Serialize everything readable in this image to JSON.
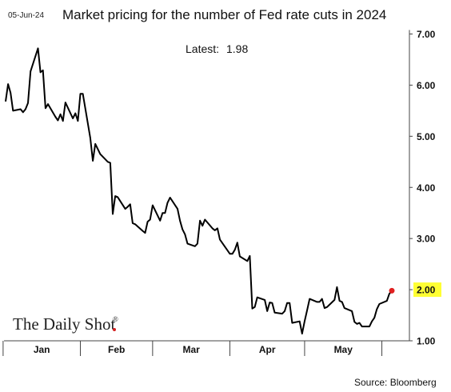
{
  "header": {
    "date_stamp": "05-Jun-24",
    "title": "Market pricing for the number of Fed rate cuts in 2024"
  },
  "annotation": {
    "label": "Latest:",
    "value": "1.98"
  },
  "branding": {
    "logo": "The Daily Shot",
    "logo_mark": "®"
  },
  "footer": {
    "source": "Source: Bloomberg"
  },
  "colors": {
    "line": "#000000",
    "marker": "#e02020",
    "highlight_box": "#ffff33"
  },
  "chart_data": {
    "type": "line",
    "title": "Market pricing for the number of Fed rate cuts in 2024",
    "xlabel": "",
    "ylabel": "",
    "ylim": [
      1.0,
      7.0
    ],
    "yticks": [
      "7.00",
      "6.00",
      "5.00",
      "4.00",
      "3.00",
      "2.00",
      "1.00"
    ],
    "highlight_tick": "2.00",
    "y_axis_side": "right",
    "grid": false,
    "legend": "none",
    "x_periods": [
      "Jan",
      "Feb",
      "Mar",
      "Apr",
      "May"
    ],
    "x_start": "2024-01-02",
    "x_end": "2024-06-05",
    "series": [
      {
        "values": [
          [
            "2024-01-02",
            5.68
          ],
          [
            "2024-01-03",
            6.02
          ],
          [
            "2024-01-04",
            5.85
          ],
          [
            "2024-01-05",
            5.5
          ],
          [
            "2024-01-08",
            5.53
          ],
          [
            "2024-01-09",
            5.47
          ],
          [
            "2024-01-10",
            5.53
          ],
          [
            "2024-01-11",
            5.65
          ],
          [
            "2024-01-12",
            6.27
          ],
          [
            "2024-01-15",
            6.72
          ],
          [
            "2024-01-16",
            6.25
          ],
          [
            "2024-01-17",
            6.29
          ],
          [
            "2024-01-18",
            5.55
          ],
          [
            "2024-01-19",
            5.63
          ],
          [
            "2024-01-22",
            5.38
          ],
          [
            "2024-01-23",
            5.31
          ],
          [
            "2024-01-24",
            5.43
          ],
          [
            "2024-01-25",
            5.3
          ],
          [
            "2024-01-26",
            5.66
          ],
          [
            "2024-01-29",
            5.35
          ],
          [
            "2024-01-30",
            5.45
          ],
          [
            "2024-01-31",
            5.3
          ],
          [
            "2024-02-01",
            5.83
          ],
          [
            "2024-02-02",
            5.83
          ],
          [
            "2024-02-05",
            4.97
          ],
          [
            "2024-02-06",
            4.52
          ],
          [
            "2024-02-07",
            4.85
          ],
          [
            "2024-02-08",
            4.75
          ],
          [
            "2024-02-09",
            4.65
          ],
          [
            "2024-02-12",
            4.5
          ],
          [
            "2024-02-13",
            4.48
          ],
          [
            "2024-02-14",
            3.48
          ],
          [
            "2024-02-15",
            3.83
          ],
          [
            "2024-02-16",
            3.81
          ],
          [
            "2024-02-19",
            3.58
          ],
          [
            "2024-02-20",
            3.62
          ],
          [
            "2024-02-21",
            3.67
          ],
          [
            "2024-02-22",
            3.3
          ],
          [
            "2024-02-23",
            3.28
          ],
          [
            "2024-02-26",
            3.15
          ],
          [
            "2024-02-27",
            3.11
          ],
          [
            "2024-02-28",
            3.33
          ],
          [
            "2024-02-29",
            3.37
          ],
          [
            "2024-03-01",
            3.65
          ],
          [
            "2024-03-04",
            3.35
          ],
          [
            "2024-03-05",
            3.5
          ],
          [
            "2024-03-06",
            3.5
          ],
          [
            "2024-03-07",
            3.7
          ],
          [
            "2024-03-08",
            3.8
          ],
          [
            "2024-03-11",
            3.58
          ],
          [
            "2024-03-12",
            3.35
          ],
          [
            "2024-03-13",
            3.18
          ],
          [
            "2024-03-14",
            3.08
          ],
          [
            "2024-03-15",
            2.9
          ],
          [
            "2024-03-18",
            2.85
          ],
          [
            "2024-03-19",
            2.9
          ],
          [
            "2024-03-20",
            3.35
          ],
          [
            "2024-03-21",
            3.25
          ],
          [
            "2024-03-22",
            3.37
          ],
          [
            "2024-03-25",
            3.2
          ],
          [
            "2024-03-26",
            3.16
          ],
          [
            "2024-03-27",
            3.2
          ],
          [
            "2024-03-28",
            2.98
          ],
          [
            "2024-04-01",
            2.7
          ],
          [
            "2024-04-02",
            2.7
          ],
          [
            "2024-04-03",
            2.78
          ],
          [
            "2024-04-04",
            2.92
          ],
          [
            "2024-04-05",
            2.65
          ],
          [
            "2024-04-08",
            2.56
          ],
          [
            "2024-04-09",
            2.66
          ],
          [
            "2024-04-10",
            1.63
          ],
          [
            "2024-04-11",
            1.66
          ],
          [
            "2024-04-12",
            1.85
          ],
          [
            "2024-04-15",
            1.8
          ],
          [
            "2024-04-16",
            1.58
          ],
          [
            "2024-04-17",
            1.75
          ],
          [
            "2024-04-18",
            1.74
          ],
          [
            "2024-04-19",
            1.55
          ],
          [
            "2024-04-22",
            1.53
          ],
          [
            "2024-04-23",
            1.58
          ],
          [
            "2024-04-24",
            1.74
          ],
          [
            "2024-04-25",
            1.74
          ],
          [
            "2024-04-26",
            1.35
          ],
          [
            "2024-04-29",
            1.38
          ],
          [
            "2024-04-30",
            1.14
          ],
          [
            "2024-05-01",
            1.38
          ],
          [
            "2024-05-02",
            1.6
          ],
          [
            "2024-05-03",
            1.82
          ],
          [
            "2024-05-06",
            1.76
          ],
          [
            "2024-05-07",
            1.76
          ],
          [
            "2024-05-08",
            1.82
          ],
          [
            "2024-05-09",
            1.64
          ],
          [
            "2024-05-10",
            1.66
          ],
          [
            "2024-05-13",
            1.8
          ],
          [
            "2024-05-14",
            2.05
          ],
          [
            "2024-05-15",
            1.78
          ],
          [
            "2024-05-16",
            1.76
          ],
          [
            "2024-05-17",
            1.64
          ],
          [
            "2024-05-20",
            1.58
          ],
          [
            "2024-05-21",
            1.37
          ],
          [
            "2024-05-22",
            1.33
          ],
          [
            "2024-05-23",
            1.35
          ],
          [
            "2024-05-24",
            1.28
          ],
          [
            "2024-05-27",
            1.28
          ],
          [
            "2024-05-28",
            1.38
          ],
          [
            "2024-05-29",
            1.45
          ],
          [
            "2024-05-30",
            1.62
          ],
          [
            "2024-05-31",
            1.72
          ],
          [
            "2024-06-03",
            1.78
          ],
          [
            "2024-06-04",
            1.92
          ],
          [
            "2024-06-05",
            1.98
          ]
        ]
      }
    ]
  }
}
